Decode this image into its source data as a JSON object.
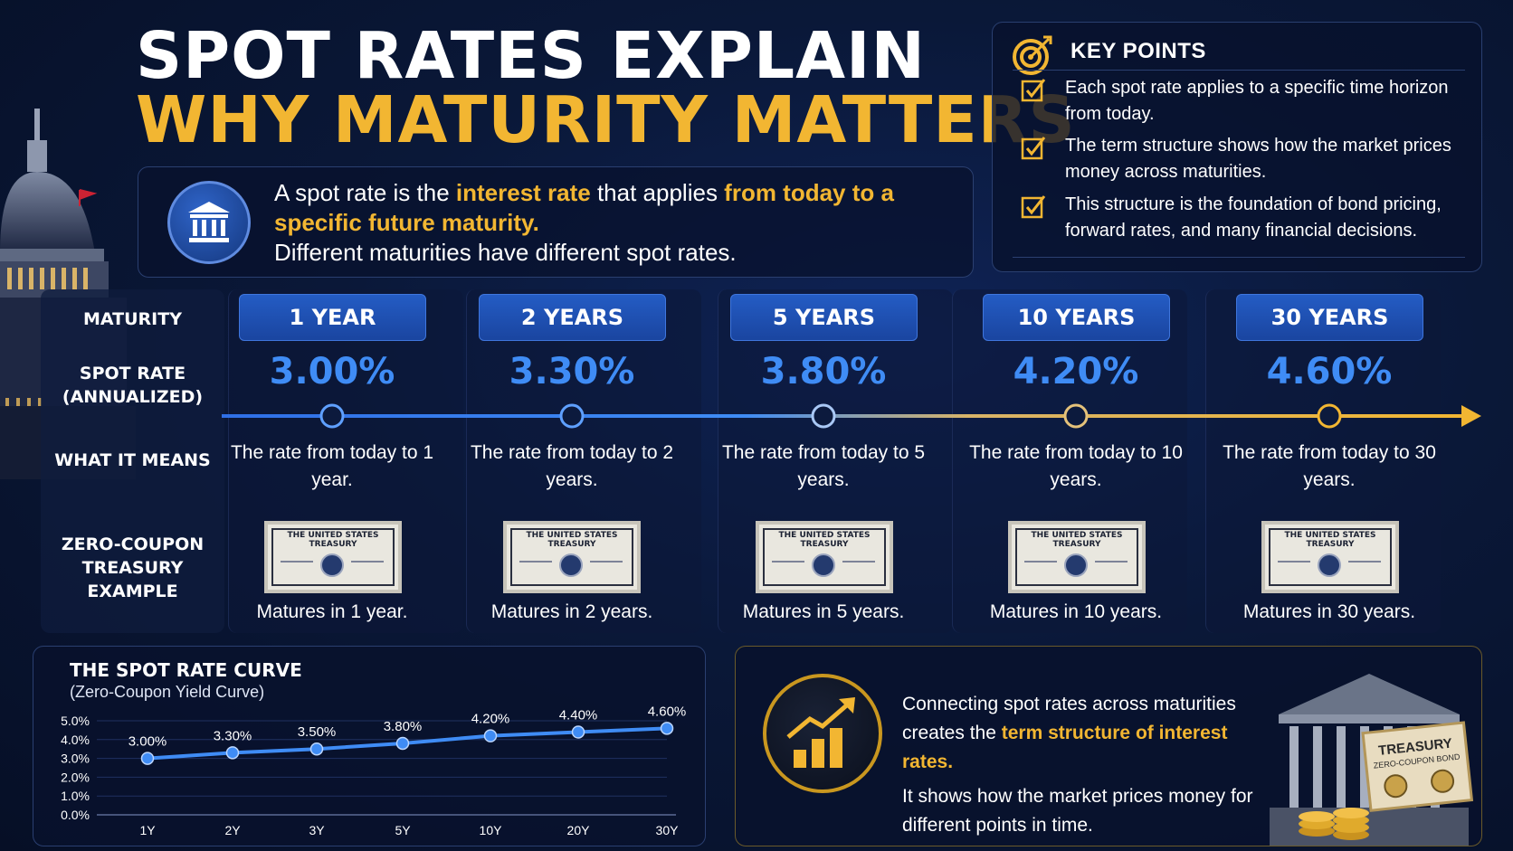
{
  "title": {
    "line1": "SPOT RATES EXPLAIN",
    "line2": "WHY MATURITY MATTERS"
  },
  "definition": {
    "part1": "A spot rate is the ",
    "highlight1": "interest rate",
    "part2": " that applies ",
    "highlight2": "from today to a specific future maturity.",
    "line3": "Different maturities have different spot rates."
  },
  "key_points": {
    "title": "KEY POINTS",
    "items": [
      "Each spot rate applies to a specific time horizon from today.",
      "The term structure shows how the market prices money across maturities.",
      "This structure is the foundation of bond pricing, forward rates, and many financial decisions."
    ]
  },
  "row_labels": {
    "maturity": "MATURITY",
    "spot_rate": "SPOT RATE (ANNUALIZED)",
    "what_it_means": "WHAT IT MEANS",
    "example": "ZERO-COUPON TREASURY EXAMPLE"
  },
  "columns": [
    {
      "maturity": "1 YEAR",
      "rate": "3.00%",
      "means": "The rate from today to 1 year.",
      "matures": "Matures in 1 year."
    },
    {
      "maturity": "2 YEARS",
      "rate": "3.30%",
      "means": "The rate from today to 2 years.",
      "matures": "Matures in 2 years."
    },
    {
      "maturity": "5 YEARS",
      "rate": "3.80%",
      "means": "The rate from today to 5 years.",
      "matures": "Matures in 5 years."
    },
    {
      "maturity": "10 YEARS",
      "rate": "4.20%",
      "means": "The rate from today to 10 years.",
      "matures": "Matures in 10 years."
    },
    {
      "maturity": "30 YEARS",
      "rate": "4.60%",
      "means": "The rate from today to 30 years.",
      "matures": "Matures in 30 years."
    }
  ],
  "bond_title": "THE UNITED STATES TREASURY",
  "curve": {
    "title": "THE SPOT RATE CURVE",
    "subtitle": "(Zero-Coupon Yield Curve)"
  },
  "chart_data": {
    "type": "line",
    "title": "THE SPOT RATE CURVE",
    "subtitle": "(Zero-Coupon Yield Curve)",
    "categories": [
      "1Y",
      "2Y",
      "3Y",
      "5Y",
      "10Y",
      "20Y",
      "30Y"
    ],
    "values": [
      3.0,
      3.3,
      3.5,
      3.8,
      4.2,
      4.4,
      4.6
    ],
    "data_labels": [
      "3.00%",
      "3.30%",
      "3.50%",
      "3.80%",
      "4.20%",
      "4.40%",
      "4.60%"
    ],
    "y_ticks": [
      "0.0%",
      "1.0%",
      "2.0%",
      "3.0%",
      "4.0%",
      "5.0%"
    ],
    "ylim": [
      0,
      5
    ],
    "grid": true,
    "color": "#3f8cf5"
  },
  "connect": {
    "line1": "Connecting spot rates across maturities creates the ",
    "highlight": "term structure of interest rates.",
    "line2": "It shows how the market prices money for different points in time."
  },
  "treasury_sign": {
    "title": "TREASURY",
    "sub": "ZERO-COUPON BOND"
  },
  "colors": {
    "accent_blue": "#3f8cf5",
    "gold": "#f2b632",
    "header_blue": "#245cc4"
  }
}
